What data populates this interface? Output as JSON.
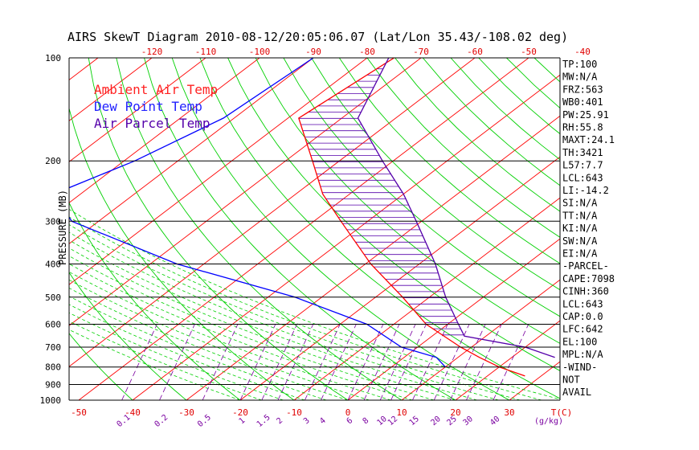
{
  "title": "AIRS SkewT Diagram 2010-08-12/20:05:06.07 (Lat/Lon 35.43/-108.02 deg)",
  "ylabel": "PRESSURE (MB)",
  "colors": {
    "ambient": "#ff0000",
    "dewpoint": "#0000ff",
    "parcel": "#5500aa",
    "isotherm": "#ff0000",
    "dry_adiabat": "#00d000",
    "moist_adiabat": "#00d000",
    "mixing_ratio": "#7a00a0",
    "axis": "#000000"
  },
  "legend": [
    {
      "label": "Ambient Air Temp",
      "color": "#ff2222"
    },
    {
      "label": "Dew Point Temp",
      "color": "#2222ff"
    },
    {
      "label": "Air Parcel Temp",
      "color": "#5500aa"
    }
  ],
  "indices": [
    "TP:100",
    "MW:N/A",
    "FRZ:563",
    "WB0:401",
    "PW:25.91",
    "RH:55.8",
    "MAXT:24.1",
    "TH:3421",
    "L57:7.7",
    "LCL:643",
    "LI:-14.2",
    "SI:N/A",
    "TT:N/A",
    "KI:N/A",
    "SW:N/A",
    "EI:N/A",
    "-PARCEL-",
    "CAPE:7098",
    "CINH:360",
    "LCL:643",
    "CAP:0.0",
    "LFC:642",
    "EL:100",
    "MPL:N/A",
    "-WIND-",
    "NOT",
    "AVAIL"
  ],
  "chart_data": {
    "type": "line",
    "y_axis": {
      "label": "PRESSURE (MB)",
      "scale": "log",
      "range": [
        1000,
        100
      ],
      "ticks": [
        100,
        200,
        300,
        400,
        500,
        600,
        700,
        800,
        900,
        1000
      ]
    },
    "top_temp_ticks": [
      -120,
      -110,
      -100,
      -90,
      -80,
      -70,
      -60,
      -50,
      -40
    ],
    "bottom_temp_ticks": [
      -50,
      -40,
      -30,
      -20,
      -10,
      0,
      10,
      20,
      30
    ],
    "bottom_unit": "T(C)",
    "mixing_ratio_labels": [
      "0.1",
      "0.2",
      "0.5",
      "1",
      "1.5",
      "2",
      "3",
      "4",
      "6",
      "8",
      "10",
      "12",
      "15",
      "20",
      "25",
      "30",
      "40"
    ],
    "mixing_ratio_unit": "(g/kg)",
    "series": [
      {
        "name": "Ambient Air Temp",
        "points": [
          [
            100,
            -75
          ],
          [
            150,
            -78
          ],
          [
            200,
            -65
          ],
          [
            250,
            -55
          ],
          [
            300,
            -45
          ],
          [
            400,
            -29
          ],
          [
            500,
            -15
          ],
          [
            600,
            -4
          ],
          [
            700,
            8
          ],
          [
            750,
            14
          ],
          [
            800,
            20
          ],
          [
            850,
            27
          ]
        ]
      },
      {
        "name": "Dew Point Temp",
        "points": [
          [
            100,
            -90
          ],
          [
            150,
            -92
          ],
          [
            200,
            -98
          ],
          [
            250,
            -105
          ],
          [
            300,
            -95
          ],
          [
            400,
            -65
          ],
          [
            500,
            -35
          ],
          [
            600,
            -15
          ],
          [
            700,
            -3
          ],
          [
            750,
            6
          ],
          [
            800,
            10
          ]
        ]
      },
      {
        "name": "Air Parcel Temp",
        "points": [
          [
            100,
            -76
          ],
          [
            150,
            -67
          ],
          [
            200,
            -52
          ],
          [
            250,
            -40
          ],
          [
            300,
            -31
          ],
          [
            400,
            -17
          ],
          [
            500,
            -7
          ],
          [
            600,
            2
          ],
          [
            650,
            6
          ],
          [
            700,
            20
          ],
          [
            750,
            28
          ]
        ]
      }
    ]
  }
}
